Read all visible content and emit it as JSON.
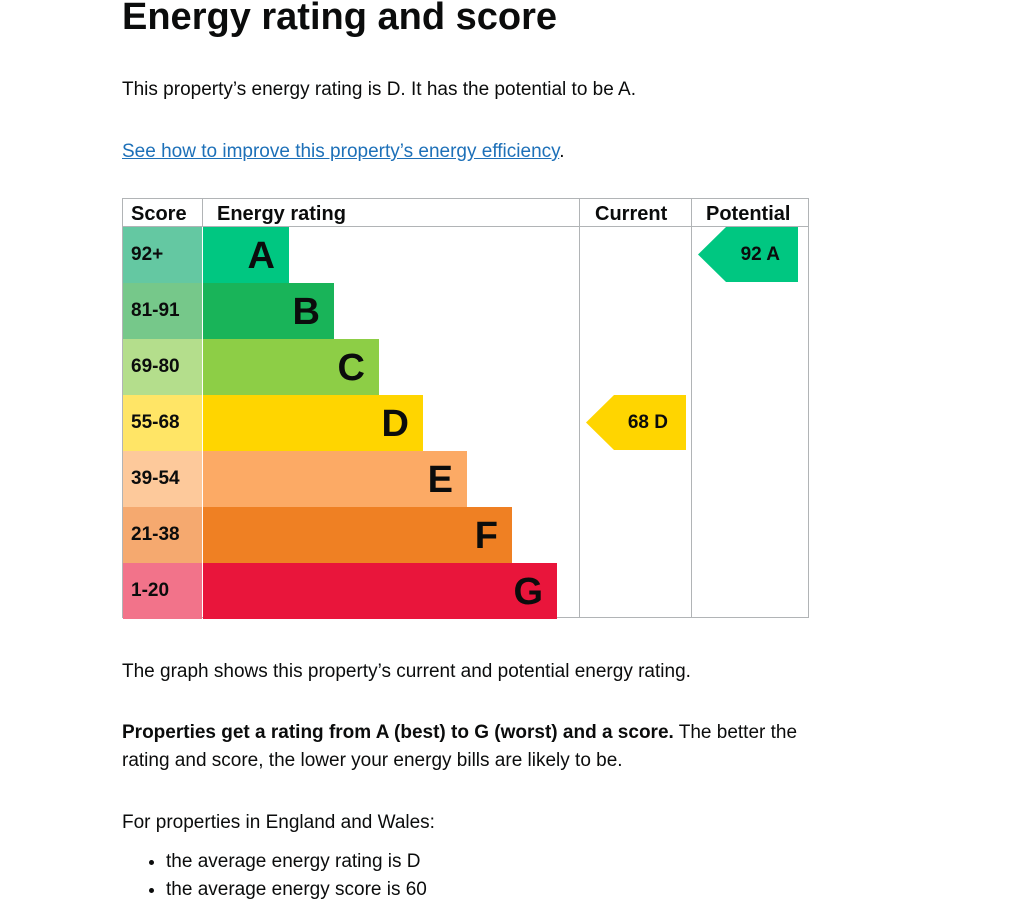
{
  "title": "Energy rating and score",
  "intro": "This property’s energy rating is D. It has the potential to be A.",
  "link": "See how to improve this property’s energy efficiency",
  "link_suffix": ".",
  "chart_data": {
    "type": "table",
    "headers": [
      "Score",
      "Energy rating",
      "Current",
      "Potential"
    ],
    "bands": [
      {
        "score": "92+",
        "letter": "A",
        "color": "#00c781",
        "score_color": "#64c8a2"
      },
      {
        "score": "81-91",
        "letter": "B",
        "color": "#19b459",
        "score_color": "#76c88a"
      },
      {
        "score": "69-80",
        "letter": "C",
        "color": "#8dce46",
        "score_color": "#b4de8c"
      },
      {
        "score": "55-68",
        "letter": "D",
        "color": "#ffd500",
        "score_color": "#ffe566"
      },
      {
        "score": "39-54",
        "letter": "E",
        "color": "#fcaa65",
        "score_color": "#fdc99b"
      },
      {
        "score": "21-38",
        "letter": "F",
        "color": "#ef8023",
        "score_color": "#f5a96f"
      },
      {
        "score": "1-20",
        "letter": "G",
        "color": "#e9153b",
        "score_color": "#f2738a"
      }
    ],
    "current": {
      "score": 68,
      "letter": "D",
      "label": "68  D"
    },
    "potential": {
      "score": 92,
      "letter": "A",
      "label": "92  A"
    }
  },
  "graph_note": "The graph shows this property’s current and potential energy rating.",
  "rating_bold": "Properties get a rating from A (best) to G (worst) and a score.",
  "rating_rest": " The better the rating and score, the lower your energy bills are likely to be.",
  "average_intro": "For properties in England and Wales:",
  "averages": [
    "the average energy rating is D",
    "the average energy score is 60"
  ]
}
